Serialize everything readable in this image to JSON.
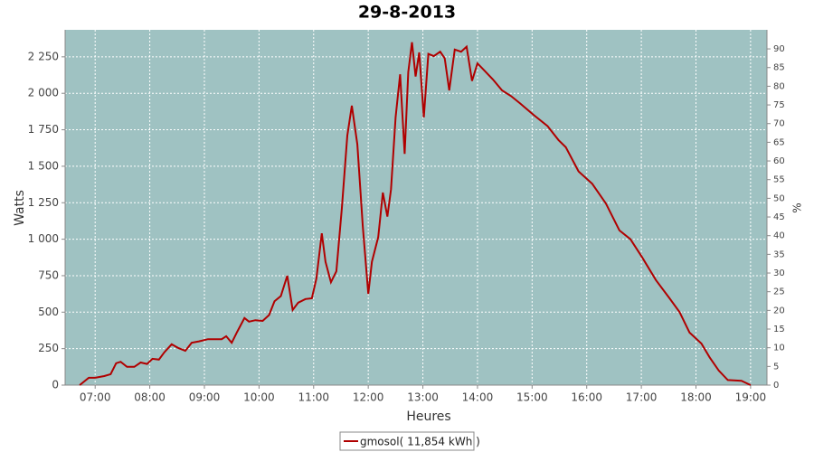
{
  "chart_data": {
    "type": "line",
    "title": "29-8-2013",
    "x_label": "Heures",
    "y_label": "Watts",
    "y2_label": "%",
    "x": [
      "06:43",
      "06:53",
      "07:00",
      "07:10",
      "07:17",
      "07:23",
      "07:28",
      "07:35",
      "07:43",
      "07:50",
      "07:57",
      "08:03",
      "08:10",
      "08:16",
      "08:24",
      "08:31",
      "08:39",
      "08:46",
      "08:54",
      "09:04",
      "09:19",
      "09:24",
      "09:30",
      "09:36",
      "09:44",
      "09:49",
      "09:56",
      "10:04",
      "10:11",
      "10:17",
      "10:24",
      "10:31",
      "10:37",
      "10:43",
      "10:51",
      "10:58",
      "11:03",
      "11:09",
      "11:13",
      "11:19",
      "11:25",
      "11:31",
      "11:37",
      "11:42",
      "11:48",
      "11:54",
      "12:00",
      "12:04",
      "12:11",
      "12:16",
      "12:21",
      "12:25",
      "12:30",
      "12:35",
      "12:40",
      "12:44",
      "12:48",
      "12:52",
      "12:56",
      "13:01",
      "13:06",
      "13:12",
      "13:19",
      "13:24",
      "13:29",
      "13:35",
      "13:42",
      "13:48",
      "13:54",
      "14:00",
      "14:07",
      "14:17",
      "14:27",
      "14:37",
      "14:47",
      "15:02",
      "15:17",
      "15:29",
      "15:37",
      "15:51",
      "16:06",
      "16:21",
      "16:36",
      "16:48",
      "17:01",
      "17:16",
      "17:31",
      "17:42",
      "17:53",
      "18:06",
      "18:15",
      "18:25",
      "18:35",
      "18:50",
      "19:00"
    ],
    "series": [
      {
        "name": "gmosol( 11,854 kWh )",
        "color": "#b00000",
        "values": [
          0,
          50,
          50,
          62,
          75,
          150,
          160,
          125,
          125,
          155,
          145,
          180,
          175,
          225,
          280,
          255,
          235,
          290,
          300,
          315,
          315,
          335,
          290,
          365,
          460,
          435,
          445,
          440,
          480,
          575,
          610,
          750,
          515,
          565,
          590,
          595,
          730,
          1040,
          845,
          705,
          780,
          1215,
          1710,
          1915,
          1650,
          1090,
          625,
          845,
          1015,
          1320,
          1155,
          1340,
          1835,
          2130,
          1585,
          2145,
          2350,
          2115,
          2280,
          1835,
          2270,
          2255,
          2285,
          2240,
          2020,
          2300,
          2285,
          2320,
          2085,
          2205,
          2160,
          2095,
          2020,
          1980,
          1930,
          1850,
          1775,
          1680,
          1630,
          1465,
          1380,
          1245,
          1060,
          1000,
          875,
          720,
          595,
          500,
          360,
          285,
          190,
          100,
          35,
          30,
          0
        ]
      }
    ],
    "xlim": [
      "06:27",
      "19:18"
    ],
    "xticks": [
      "07:00",
      "08:00",
      "09:00",
      "10:00",
      "11:00",
      "12:00",
      "13:00",
      "14:00",
      "15:00",
      "16:00",
      "17:00",
      "18:00",
      "19:00"
    ],
    "ylim": [
      0,
      2435
    ],
    "yticks": [
      0,
      250,
      500,
      750,
      {
        "value": 1000,
        "label": "1 000"
      },
      {
        "value": 1250,
        "label": "1 250"
      },
      {
        "value": 1500,
        "label": "1 500"
      },
      {
        "value": 1750,
        "label": "1 750"
      },
      {
        "value": 2000,
        "label": "2 000"
      },
      {
        "value": 2250,
        "label": "2 250"
      }
    ],
    "y2lim": [
      0,
      95.1
    ],
    "y2ticks": [
      0,
      5,
      10,
      15,
      20,
      25,
      30,
      35,
      40,
      45,
      50,
      55,
      60,
      65,
      70,
      75,
      80,
      85,
      90
    ],
    "grid": true,
    "plot_background": "#9fc2c2",
    "legend": "bottom"
  }
}
